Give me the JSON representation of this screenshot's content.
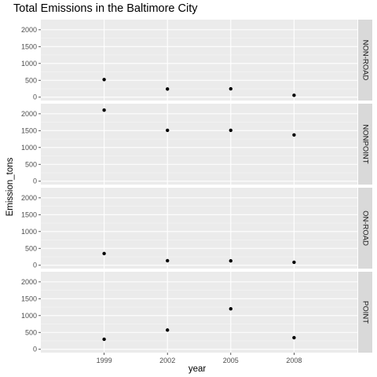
{
  "chart_data": {
    "type": "scatter",
    "title": "Total Emissions in the Baltimore City",
    "xlabel": "year",
    "ylabel": "Emission_tons",
    "x_categories": [
      "1999",
      "2002",
      "2005",
      "2008"
    ],
    "y_ticks": [
      0,
      500,
      1000,
      1500,
      2000
    ],
    "ylim": [
      -100,
      2300
    ],
    "grid": true,
    "facets": [
      {
        "label": "NON-ROAD",
        "values": [
          522,
          241,
          249,
          55
        ]
      },
      {
        "label": "NONPOINT",
        "values": [
          2108,
          1510,
          1510,
          1373
        ]
      },
      {
        "label": "ON-ROAD",
        "values": [
          347,
          135,
          130,
          88
        ]
      },
      {
        "label": "POINT",
        "values": [
          297,
          570,
          1200,
          344
        ]
      }
    ],
    "point_color": "#000000",
    "panel_background": "#ebebeb",
    "strip_background": "#d9d9d9"
  }
}
